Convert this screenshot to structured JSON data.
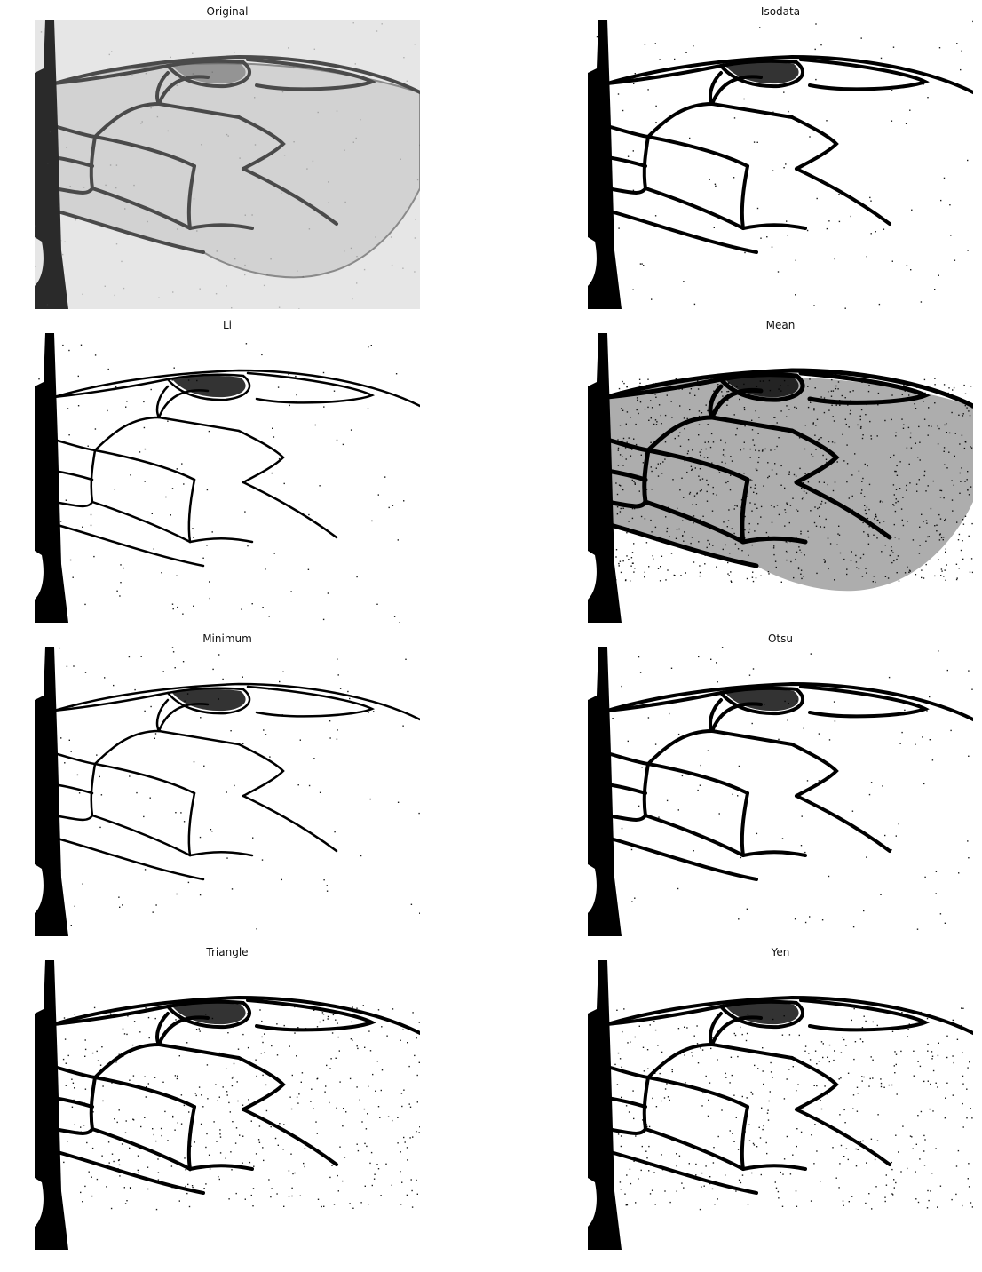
{
  "panels": [
    {
      "key": "original",
      "title": "Original",
      "style": "gray"
    },
    {
      "key": "isodata",
      "title": "Isodata",
      "style": "bw"
    },
    {
      "key": "li",
      "title": "Li",
      "style": "bw-thin"
    },
    {
      "key": "mean",
      "title": "Mean",
      "style": "bw-dense"
    },
    {
      "key": "minimum",
      "title": "Minimum",
      "style": "bw-thin"
    },
    {
      "key": "otsu",
      "title": "Otsu",
      "style": "bw"
    },
    {
      "key": "triangle",
      "title": "Triangle",
      "style": "bw-speckle"
    },
    {
      "key": "yen",
      "title": "Yen",
      "style": "bw-speckle"
    }
  ],
  "colors": {
    "foreground": "#000000",
    "background": "#ffffff",
    "gray_background": "#e6e6e6",
    "gray_vein": "#4a4a4a"
  }
}
